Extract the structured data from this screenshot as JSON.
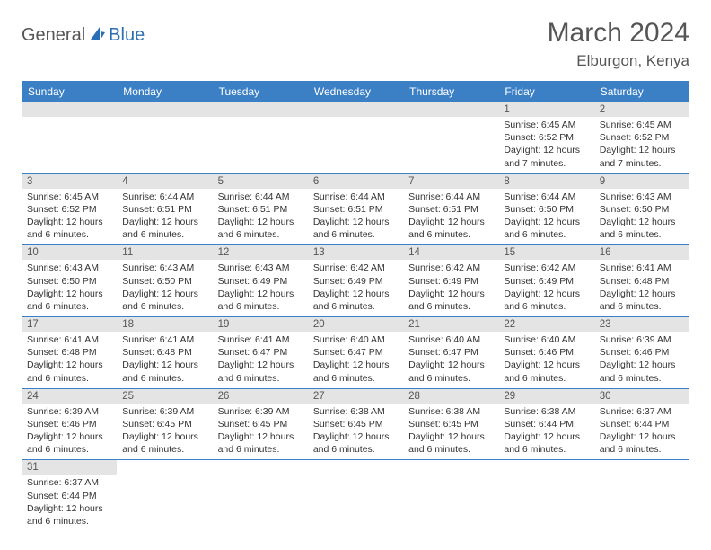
{
  "brand": {
    "text1": "General",
    "text2": "Blue"
  },
  "title": "March 2024",
  "location": "Elburgon, Kenya",
  "colors": {
    "header_bg": "#3b7fc4",
    "header_fg": "#ffffff",
    "daynum_bg": "#e4e4e4",
    "row_border": "#3b7fc4",
    "brand_gray": "#555555",
    "brand_blue": "#2a6fb5"
  },
  "weekdays": [
    "Sunday",
    "Monday",
    "Tuesday",
    "Wednesday",
    "Thursday",
    "Friday",
    "Saturday"
  ],
  "weeks": [
    [
      null,
      null,
      null,
      null,
      null,
      {
        "n": "1",
        "sunrise": "6:45 AM",
        "sunset": "6:52 PM",
        "daylight": "12 hours and 7 minutes."
      },
      {
        "n": "2",
        "sunrise": "6:45 AM",
        "sunset": "6:52 PM",
        "daylight": "12 hours and 7 minutes."
      }
    ],
    [
      {
        "n": "3",
        "sunrise": "6:45 AM",
        "sunset": "6:52 PM",
        "daylight": "12 hours and 6 minutes."
      },
      {
        "n": "4",
        "sunrise": "6:44 AM",
        "sunset": "6:51 PM",
        "daylight": "12 hours and 6 minutes."
      },
      {
        "n": "5",
        "sunrise": "6:44 AM",
        "sunset": "6:51 PM",
        "daylight": "12 hours and 6 minutes."
      },
      {
        "n": "6",
        "sunrise": "6:44 AM",
        "sunset": "6:51 PM",
        "daylight": "12 hours and 6 minutes."
      },
      {
        "n": "7",
        "sunrise": "6:44 AM",
        "sunset": "6:51 PM",
        "daylight": "12 hours and 6 minutes."
      },
      {
        "n": "8",
        "sunrise": "6:44 AM",
        "sunset": "6:50 PM",
        "daylight": "12 hours and 6 minutes."
      },
      {
        "n": "9",
        "sunrise": "6:43 AM",
        "sunset": "6:50 PM",
        "daylight": "12 hours and 6 minutes."
      }
    ],
    [
      {
        "n": "10",
        "sunrise": "6:43 AM",
        "sunset": "6:50 PM",
        "daylight": "12 hours and 6 minutes."
      },
      {
        "n": "11",
        "sunrise": "6:43 AM",
        "sunset": "6:50 PM",
        "daylight": "12 hours and 6 minutes."
      },
      {
        "n": "12",
        "sunrise": "6:43 AM",
        "sunset": "6:49 PM",
        "daylight": "12 hours and 6 minutes."
      },
      {
        "n": "13",
        "sunrise": "6:42 AM",
        "sunset": "6:49 PM",
        "daylight": "12 hours and 6 minutes."
      },
      {
        "n": "14",
        "sunrise": "6:42 AM",
        "sunset": "6:49 PM",
        "daylight": "12 hours and 6 minutes."
      },
      {
        "n": "15",
        "sunrise": "6:42 AM",
        "sunset": "6:49 PM",
        "daylight": "12 hours and 6 minutes."
      },
      {
        "n": "16",
        "sunrise": "6:41 AM",
        "sunset": "6:48 PM",
        "daylight": "12 hours and 6 minutes."
      }
    ],
    [
      {
        "n": "17",
        "sunrise": "6:41 AM",
        "sunset": "6:48 PM",
        "daylight": "12 hours and 6 minutes."
      },
      {
        "n": "18",
        "sunrise": "6:41 AM",
        "sunset": "6:48 PM",
        "daylight": "12 hours and 6 minutes."
      },
      {
        "n": "19",
        "sunrise": "6:41 AM",
        "sunset": "6:47 PM",
        "daylight": "12 hours and 6 minutes."
      },
      {
        "n": "20",
        "sunrise": "6:40 AM",
        "sunset": "6:47 PM",
        "daylight": "12 hours and 6 minutes."
      },
      {
        "n": "21",
        "sunrise": "6:40 AM",
        "sunset": "6:47 PM",
        "daylight": "12 hours and 6 minutes."
      },
      {
        "n": "22",
        "sunrise": "6:40 AM",
        "sunset": "6:46 PM",
        "daylight": "12 hours and 6 minutes."
      },
      {
        "n": "23",
        "sunrise": "6:39 AM",
        "sunset": "6:46 PM",
        "daylight": "12 hours and 6 minutes."
      }
    ],
    [
      {
        "n": "24",
        "sunrise": "6:39 AM",
        "sunset": "6:46 PM",
        "daylight": "12 hours and 6 minutes."
      },
      {
        "n": "25",
        "sunrise": "6:39 AM",
        "sunset": "6:45 PM",
        "daylight": "12 hours and 6 minutes."
      },
      {
        "n": "26",
        "sunrise": "6:39 AM",
        "sunset": "6:45 PM",
        "daylight": "12 hours and 6 minutes."
      },
      {
        "n": "27",
        "sunrise": "6:38 AM",
        "sunset": "6:45 PM",
        "daylight": "12 hours and 6 minutes."
      },
      {
        "n": "28",
        "sunrise": "6:38 AM",
        "sunset": "6:45 PM",
        "daylight": "12 hours and 6 minutes."
      },
      {
        "n": "29",
        "sunrise": "6:38 AM",
        "sunset": "6:44 PM",
        "daylight": "12 hours and 6 minutes."
      },
      {
        "n": "30",
        "sunrise": "6:37 AM",
        "sunset": "6:44 PM",
        "daylight": "12 hours and 6 minutes."
      }
    ],
    [
      {
        "n": "31",
        "sunrise": "6:37 AM",
        "sunset": "6:44 PM",
        "daylight": "12 hours and 6 minutes."
      },
      null,
      null,
      null,
      null,
      null,
      null
    ]
  ],
  "labels": {
    "sunrise": "Sunrise:",
    "sunset": "Sunset:",
    "daylight": "Daylight:"
  }
}
